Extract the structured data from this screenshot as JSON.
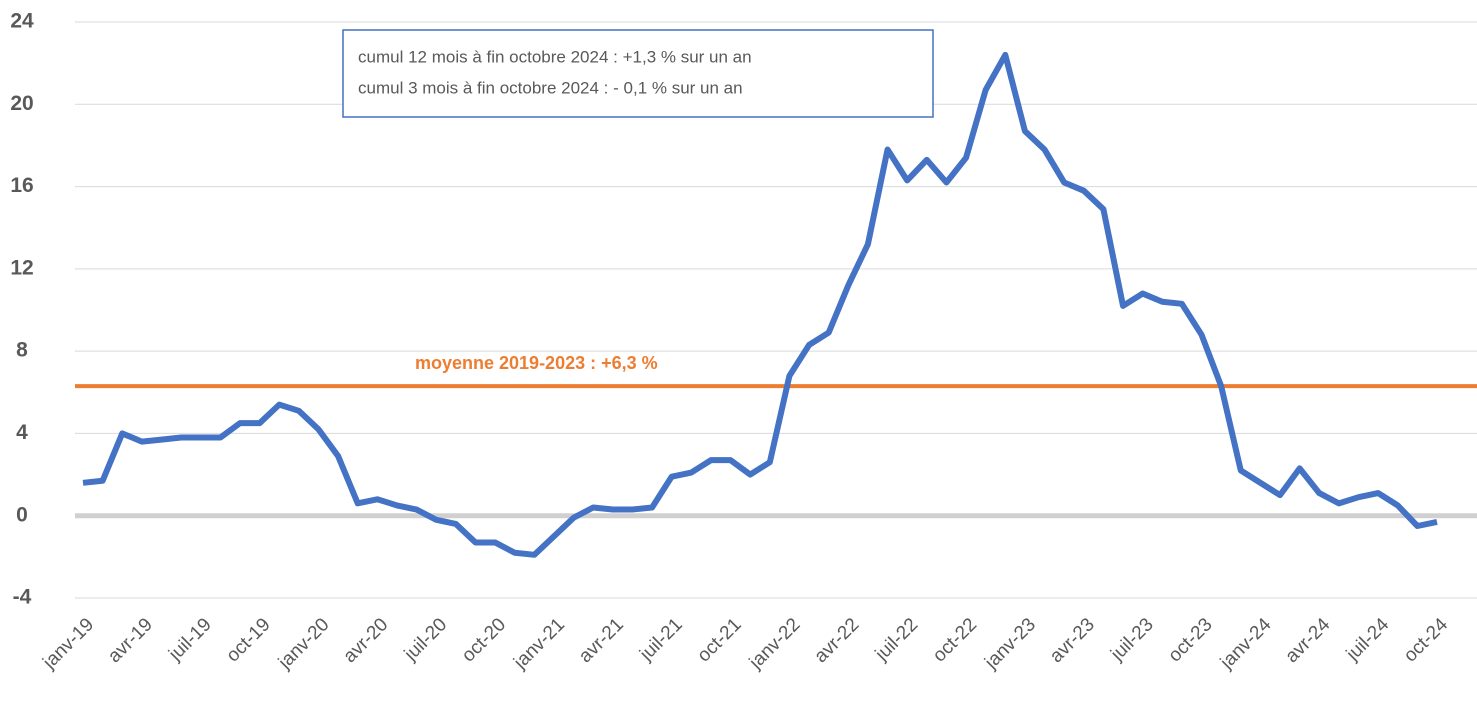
{
  "chart_data": {
    "type": "line",
    "categories": [
      "janv-19",
      null,
      null,
      "avr-19",
      null,
      null,
      "juil-19",
      null,
      null,
      "oct-19",
      null,
      null,
      "janv-20",
      null,
      null,
      "avr-20",
      null,
      null,
      "juil-20",
      null,
      null,
      "oct-20",
      null,
      null,
      "janv-21",
      null,
      null,
      "avr-21",
      null,
      null,
      "juil-21",
      null,
      null,
      "oct-21",
      null,
      null,
      "janv-22",
      null,
      null,
      "avr-22",
      null,
      null,
      "juil-22",
      null,
      null,
      "oct-22",
      null,
      null,
      "janv-23",
      null,
      null,
      "avr-23",
      null,
      null,
      "juil-23",
      null,
      null,
      "oct-23",
      null,
      null,
      "janv-24",
      null,
      null,
      "avr-24",
      null,
      null,
      "juil-24",
      null,
      null,
      "oct-24"
    ],
    "series": [
      {
        "color": "#4472c4",
        "values": [
          1.6,
          1.7,
          4.0,
          3.6,
          3.7,
          3.8,
          3.8,
          3.8,
          4.5,
          4.5,
          5.4,
          5.1,
          4.2,
          2.9,
          0.6,
          0.8,
          0.5,
          0.3,
          -0.2,
          -0.4,
          -1.3,
          -1.3,
          -1.8,
          -1.9,
          -1.0,
          -0.1,
          0.4,
          0.3,
          0.3,
          0.4,
          1.9,
          2.1,
          2.7,
          2.7,
          2.0,
          2.6,
          6.8,
          8.3,
          8.9,
          11.2,
          13.2,
          17.8,
          16.3,
          17.3,
          16.2,
          17.4,
          20.7,
          22.4,
          18.7,
          17.8,
          16.2,
          15.8,
          14.9,
          10.2,
          10.8,
          10.4,
          10.3,
          8.8,
          6.3,
          2.2,
          1.6,
          1.0,
          2.3,
          1.1,
          0.6,
          0.9,
          1.1,
          0.5,
          -0.5,
          -0.3
        ]
      }
    ],
    "reference_line": {
      "label": "moyenne 2019-2023 : +6,3 %",
      "value": 6.3,
      "color": "#ed7d31"
    },
    "annotations": [
      "cumul 12 mois à fin octobre 2024  :  +1,3 % sur un an",
      "cumul 3 mois à fin octobre 2024    :  - 0,1 % sur un an"
    ],
    "ylim": [
      -4,
      24
    ],
    "yticks": [
      -4,
      0,
      4,
      8,
      12,
      16,
      20,
      24
    ],
    "grid": true
  }
}
